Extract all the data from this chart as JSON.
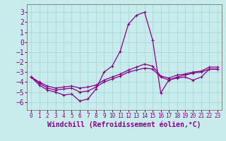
{
  "xlabel": "Windchill (Refroidissement éolien,°C)",
  "bg_color": "#c8ecec",
  "grid_color": "#a8d8d8",
  "line_color": "#880088",
  "xlim": [
    -0.5,
    23.5
  ],
  "ylim": [
    -6.8,
    3.8
  ],
  "yticks": [
    -6,
    -5,
    -4,
    -3,
    -2,
    -1,
    0,
    1,
    2,
    3
  ],
  "xticks": [
    0,
    1,
    2,
    3,
    4,
    5,
    6,
    7,
    8,
    9,
    10,
    11,
    12,
    13,
    14,
    15,
    16,
    17,
    18,
    19,
    20,
    21,
    22,
    23
  ],
  "curve1_x": [
    0,
    1,
    2,
    3,
    4,
    5,
    6,
    7,
    8,
    9,
    10,
    11,
    12,
    13,
    14,
    15,
    16,
    17,
    18,
    19,
    20,
    21,
    22,
    23
  ],
  "curve1_y": [
    -3.5,
    -4.3,
    -4.8,
    -5.0,
    -5.3,
    -5.2,
    -5.9,
    -5.7,
    -4.7,
    -3.0,
    -2.4,
    -0.9,
    1.8,
    2.7,
    3.0,
    0.2,
    -5.1,
    -3.8,
    -3.6,
    -3.5,
    -3.8,
    -3.5,
    -2.7,
    -2.7
  ],
  "curve2_x": [
    0,
    1,
    2,
    3,
    4,
    5,
    6,
    7,
    8,
    9,
    10,
    11,
    12,
    13,
    14,
    15,
    16,
    17,
    18,
    19,
    20,
    21,
    22,
    23
  ],
  "curve2_y": [
    -3.5,
    -4.0,
    -4.4,
    -4.6,
    -4.5,
    -4.4,
    -4.6,
    -4.5,
    -4.3,
    -3.8,
    -3.5,
    -3.2,
    -2.8,
    -2.5,
    -2.2,
    -2.4,
    -3.4,
    -3.6,
    -3.3,
    -3.2,
    -3.0,
    -2.9,
    -2.5,
    -2.5
  ],
  "curve3_x": [
    0,
    1,
    2,
    3,
    4,
    5,
    6,
    7,
    8,
    9,
    10,
    11,
    12,
    13,
    14,
    15,
    16,
    17,
    18,
    19,
    20,
    21,
    22,
    23
  ],
  "curve3_y": [
    -3.5,
    -4.1,
    -4.6,
    -4.8,
    -4.7,
    -4.6,
    -5.0,
    -4.9,
    -4.5,
    -4.0,
    -3.7,
    -3.4,
    -3.0,
    -2.8,
    -2.6,
    -2.7,
    -3.5,
    -3.8,
    -3.5,
    -3.3,
    -3.1,
    -3.0,
    -2.7,
    -2.7
  ],
  "fontsize_xlabel": 7,
  "fontsize_ytick": 7,
  "fontsize_xtick": 5.5
}
